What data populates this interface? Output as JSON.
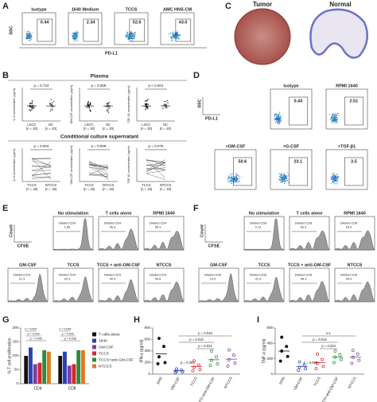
{
  "panels": {
    "A": {
      "label": "A",
      "y_axis": "SSC",
      "x_axis": "PD-L1",
      "plots": [
        {
          "title": "Isotype",
          "value": "0.44"
        },
        {
          "title": "1640 Medium",
          "value": "2.34"
        },
        {
          "title": "TCCS",
          "value": "52.6"
        },
        {
          "title": "AMC HNS-CM",
          "value": "43.0"
        }
      ]
    },
    "B": {
      "label": "B",
      "sections": [
        {
          "title": "Plasma",
          "groups": [
            {
              "name": "LSCC",
              "n": "(n = 20)"
            },
            {
              "name": "NC",
              "n": "(n = 20)"
            }
          ],
          "plots": [
            {
              "y_axis": "IL-6 concentration (pg/ml)",
              "p": "p = 0.723"
            },
            {
              "y_axis": "GM-CSF concentration (pg/ml)",
              "p": "p = 0.009"
            },
            {
              "y_axis": "TGF-β1 concentration (pg/ml)",
              "p": "p < 0.001"
            }
          ]
        },
        {
          "title": "Conditional culture supernatant",
          "groups": [
            {
              "name": "TCCS",
              "n": "(n = 18)"
            },
            {
              "name": "NTCCS",
              "n": "(n = 18)"
            }
          ],
          "plots": [
            {
              "y_axis": "IL-6 concentration (pg/ml)",
              "p": "p = 0.004"
            },
            {
              "y_axis": "GM-CSF concentration (pg/ml)",
              "p": "p = 0.008"
            },
            {
              "y_axis": "TGF-β1 concentration (pg/ml)",
              "p": "p = 0.076"
            }
          ]
        }
      ]
    },
    "C": {
      "label": "C",
      "images": [
        "Tumor",
        "Normal"
      ]
    },
    "D": {
      "label": "D",
      "y_axis": "SSC",
      "x_axis": "PD-L1",
      "plots": [
        {
          "title": "Isotype",
          "value": "0.44"
        },
        {
          "title": "RPMI 1640",
          "value": "2.51"
        },
        {
          "title": "+GM-CSF",
          "value": "50.6"
        },
        {
          "title": "+G-CSF",
          "value": "23.1"
        },
        {
          "title": "+TGF-β1",
          "value": "3.5"
        }
      ]
    },
    "E": {
      "label": "E",
      "y_axis": "Count",
      "x_axis": "CFSE",
      "gate": "Divided CD4",
      "plots": [
        {
          "title": "No stimulation",
          "value": "1.85"
        },
        {
          "title": "T cells alone",
          "value": "45.3"
        },
        {
          "title": "RPMI 1640",
          "value": "55.3"
        },
        {
          "title": "GM-CSF",
          "value": "21.3"
        },
        {
          "title": "TCCS",
          "value": "30.3"
        },
        {
          "title": "TCCS + anti-GM-CSF",
          "value": "40.9"
        },
        {
          "title": "NTCCS",
          "value": "49.8"
        }
      ]
    },
    "F": {
      "label": "F",
      "y_axis": "Count",
      "x_axis": "CFSE",
      "gate": "Divided CD8",
      "plots": [
        {
          "title": "No stimulation",
          "value": "0.12"
        },
        {
          "title": "T cells alone",
          "value": "53.3"
        },
        {
          "title": "RPMI 1640",
          "value": "53.0"
        },
        {
          "title": "GM-CSF",
          "value": "19.4"
        },
        {
          "title": "TCCS",
          "value": "31.9"
        },
        {
          "title": "TCCS + anti-GM-CSF",
          "value": "48.3"
        },
        {
          "title": "NTCCS",
          "value": "49.9"
        }
      ]
    }
  },
  "chart_data": [
    {
      "type": "bar",
      "label": "G",
      "ylabel": "% T cell proliferation",
      "categories": [
        "CD4",
        "CD8"
      ],
      "ylim": [
        0,
        200
      ],
      "yticks": [
        0,
        50,
        100,
        150,
        200
      ],
      "series": [
        {
          "name": "T cells alone",
          "color": "#111111",
          "values": [
            100,
            100
          ]
        },
        {
          "name": "1640",
          "color": "#2b3fb5",
          "values": [
            130,
            115
          ]
        },
        {
          "name": "GM-CSF",
          "color": "#7a3fa0",
          "values": [
            70,
            65
          ]
        },
        {
          "name": "TCCS",
          "color": "#d8262b",
          "values": [
            75,
            70
          ]
        },
        {
          "name": "TCCS+anti-GM-CSF",
          "color": "#2e8b3a",
          "values": [
            120,
            120
          ]
        },
        {
          "name": "NTCCS",
          "color": "#e07b1a",
          "values": [
            115,
            120
          ]
        }
      ],
      "annotations": [
        "p = 0.002",
        "p = 0.033",
        "p = 0.006",
        "p = 0.044",
        "p = 0.025",
        "p = 0.038"
      ]
    },
    {
      "type": "dot",
      "label": "H",
      "ylabel": "IFN-γ (pg/ml)",
      "categories": [
        "1640",
        "GM-CSF",
        "TCCS",
        "TCCS+anti-GM-CSF",
        "NTCCS"
      ],
      "ylim": [
        0,
        800
      ],
      "yticks": [
        0,
        200,
        400,
        600,
        800
      ],
      "colors": [
        "#111111",
        "#2b3fb5",
        "#d8262b",
        "#2e8b3a",
        "#7a3fa0"
      ],
      "values": [
        350,
        60,
        130,
        250,
        260
      ],
      "points": [
        [
          620,
          480,
          300,
          200,
          180
        ],
        [
          90,
          70,
          50,
          40,
          30
        ],
        [
          230,
          160,
          120,
          80,
          60
        ],
        [
          400,
          300,
          240,
          180,
          150
        ],
        [
          420,
          330,
          250,
          190,
          140
        ]
      ],
      "annotations": [
        "p = 0.003",
        "p = 0.031",
        "p = 0.016",
        "p = 0.018"
      ]
    },
    {
      "type": "dot",
      "label": "I",
      "ylabel": "TNF-α (pg/ml)",
      "categories": [
        "1640",
        "GM-CSF",
        "TCCS",
        "TCCS+anti-GM-CSF",
        "NTCCS"
      ],
      "ylim": [
        0,
        600
      ],
      "yticks": [
        0,
        200,
        400,
        600
      ],
      "colors": [
        "#111111",
        "#2b3fb5",
        "#d8262b",
        "#2e8b3a",
        "#7a3fa0"
      ],
      "values": [
        300,
        100,
        150,
        220,
        220
      ],
      "points": [
        [
          480,
          360,
          300,
          230,
          170
        ],
        [
          160,
          120,
          90,
          70,
          50
        ],
        [
          260,
          190,
          140,
          100,
          70
        ],
        [
          300,
          250,
          220,
          190,
          150
        ],
        [
          310,
          260,
          220,
          180,
          140
        ]
      ],
      "annotations": [
        "p = 0.003",
        "p = 0.024",
        "p = 0.016",
        "n.s."
      ]
    }
  ]
}
